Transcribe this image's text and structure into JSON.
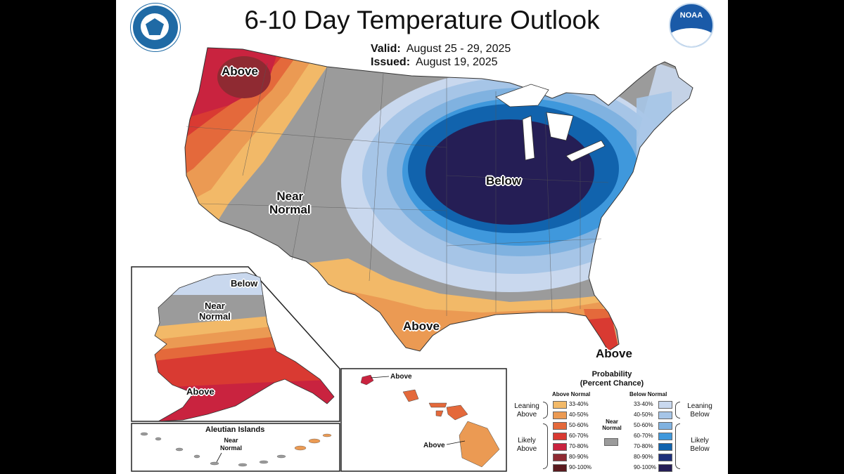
{
  "title": "6-10 Day Temperature Outlook",
  "valid_label": "Valid:",
  "valid_dates": "August 25 - 29, 2025",
  "issued_label": "Issued:",
  "issued_date": "August 19, 2025",
  "logos": {
    "left": "commerce-seal-icon",
    "right": "noaa-logo-icon"
  },
  "colors": {
    "a33": "#f2b968",
    "a40": "#eb9a53",
    "a50": "#e4693b",
    "a60": "#d93a32",
    "a70": "#c9233f",
    "a80": "#8f2a32",
    "a90": "#5a1a1e",
    "near": "#9b9b9b",
    "b33": "#c9d8ee",
    "b40": "#a6c5e7",
    "b50": "#80b2e0",
    "b60": "#3f98dc",
    "b70": "#1163ad",
    "b80": "#1d2f7a",
    "b90": "#251e55"
  },
  "labels": {
    "nw_above": "Above",
    "near_normal": "Near\nNormal",
    "below": "Below",
    "tx_above": "Above",
    "fl_above": "Above",
    "ak_below": "Below",
    "ak_near": "Near\nNormal",
    "ak_above": "Above",
    "aleutian_title": "Aleutian Islands",
    "aleutian_near": "Near\nNormal",
    "hi_above_top": "Above",
    "hi_above_bottom": "Above"
  },
  "legend": {
    "title": "Probability\n(Percent Chance)",
    "above_header": "Above Normal",
    "below_header": "Below Normal",
    "near_label": "Near\nNormal",
    "leaning_above": "Leaning\nAbove",
    "likely_above": "Likely\nAbove",
    "leaning_below": "Leaning\nBelow",
    "likely_below": "Likely\nBelow",
    "above_rows": [
      {
        "range": "33-40%",
        "color": "#f2b968"
      },
      {
        "range": "40-50%",
        "color": "#eb9a53"
      },
      {
        "range": "50-60%",
        "color": "#e4693b"
      },
      {
        "range": "60-70%",
        "color": "#d93a32"
      },
      {
        "range": "70-80%",
        "color": "#c9233f"
      },
      {
        "range": "80-90%",
        "color": "#8f2a32"
      },
      {
        "range": "90-100%",
        "color": "#5a1a1e"
      }
    ],
    "below_rows": [
      {
        "range": "33-40%",
        "color": "#c9d8ee"
      },
      {
        "range": "40-50%",
        "color": "#a6c5e7"
      },
      {
        "range": "50-60%",
        "color": "#80b2e0"
      },
      {
        "range": "60-70%",
        "color": "#3f98dc"
      },
      {
        "range": "70-80%",
        "color": "#1163ad"
      },
      {
        "range": "80-90%",
        "color": "#1d2f7a"
      },
      {
        "range": "90-100%",
        "color": "#251e55"
      }
    ],
    "near_color": "#9b9b9b"
  }
}
